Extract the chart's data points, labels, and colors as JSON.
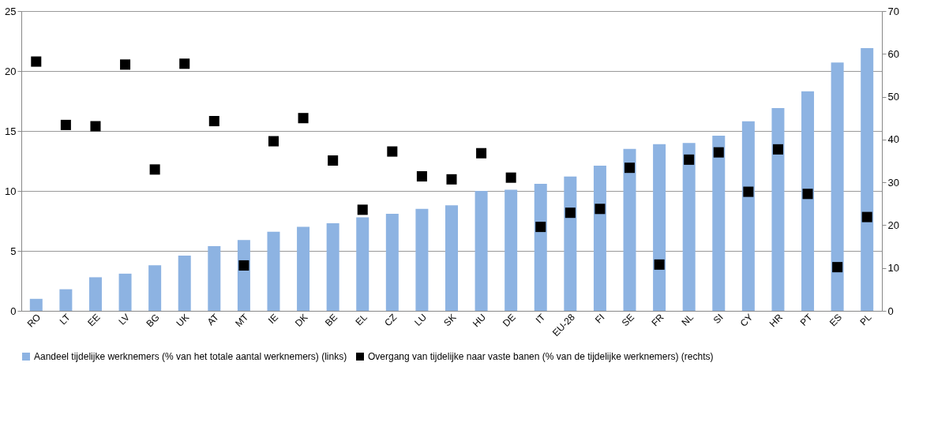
{
  "chart_data": {
    "type": "bar",
    "categories": [
      "RO",
      "LT",
      "EE",
      "LV",
      "BG",
      "UK",
      "AT",
      "MT",
      "IE",
      "DK",
      "BE",
      "EL",
      "CZ",
      "LU",
      "SK",
      "HU",
      "DE",
      "IT",
      "EU-28",
      "FI",
      "SE",
      "FR",
      "NL",
      "SI",
      "CY",
      "HR",
      "PT",
      "ES",
      "PL"
    ],
    "series": [
      {
        "name": "Aandeel tijdelijke werknemers (% van het totale aantal werknemers) (links)",
        "color": "#8db3e2",
        "values": [
          1.0,
          1.8,
          2.8,
          3.1,
          3.8,
          4.6,
          5.4,
          5.9,
          6.6,
          7.0,
          7.3,
          7.8,
          8.1,
          8.5,
          8.8,
          10.0,
          10.1,
          10.6,
          11.2,
          12.1,
          13.5,
          13.9,
          14.0,
          14.6,
          15.8,
          16.9,
          18.3,
          20.7,
          21.9
        ]
      },
      {
        "name": "Overgang van tijdelijke naar vaste banen (% van de tijdelijke werknemers) (rechts)",
        "type": "scatter",
        "axis": "y2",
        "marker": "square",
        "color": "#000000",
        "values": [
          58.2,
          43.4,
          43.1,
          57.5,
          33.0,
          57.7,
          44.3,
          10.6,
          39.6,
          45.0,
          35.1,
          23.6,
          37.2,
          31.4,
          30.7,
          36.8,
          31.1,
          19.6,
          22.9,
          23.8,
          33.4,
          10.8,
          35.3,
          37.0,
          27.8,
          37.7,
          27.3,
          10.2,
          21.9
        ]
      }
    ],
    "ylim": [
      0,
      25
    ],
    "yticks": [
      0,
      5,
      10,
      15,
      20,
      25
    ],
    "y2lim": [
      0,
      70
    ],
    "y2ticks": [
      0,
      10,
      20,
      30,
      40,
      50,
      60,
      70
    ],
    "grid": "y",
    "legend": "bottom"
  }
}
